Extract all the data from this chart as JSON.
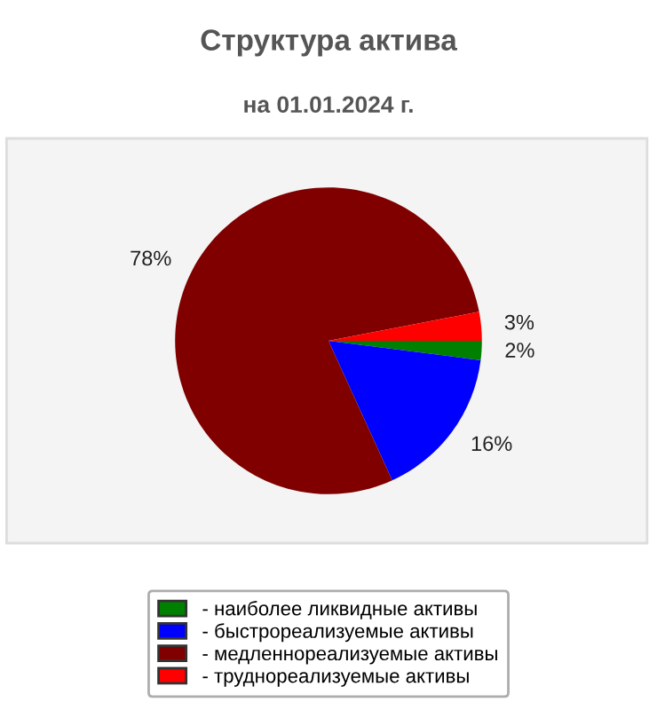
{
  "chart_data": {
    "type": "pie",
    "title": "Структура актива",
    "subtitle": "на 01.01.2024 г.",
    "categories": [
      "- наиболее ликвидные активы",
      "- быстрореализуемые активы",
      "- медленнореализуемые активы",
      "- труднореализуемые активы"
    ],
    "values": [
      2,
      16,
      78,
      3
    ],
    "colors": [
      "#008000",
      "#0000ff",
      "#800000",
      "#ff0000"
    ],
    "value_labels": [
      "2%",
      "16%",
      "78%",
      "3%"
    ],
    "legend": "bottom"
  }
}
